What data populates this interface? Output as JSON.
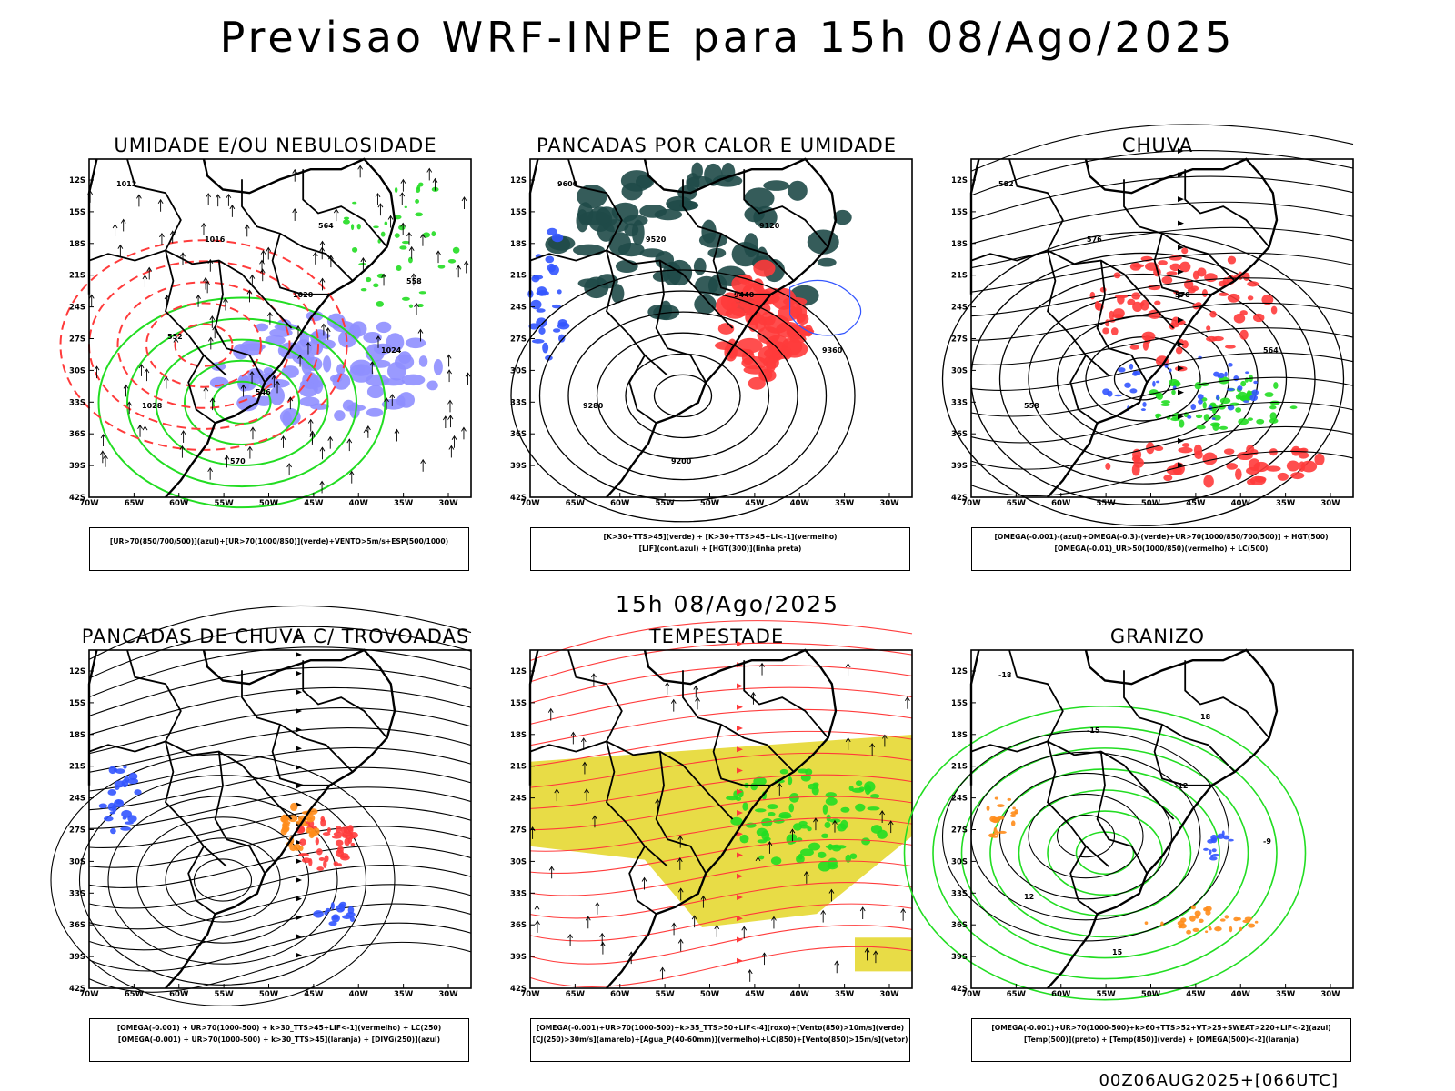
{
  "header": {
    "title": "Previsao WRF-INPE  para 15h 08/Ago/2025",
    "middle_title": "15h 08/Ago/2025",
    "run_stamp": "00Z06AUG2025+[066UTC]"
  },
  "axes": {
    "lat_labels": [
      "12S",
      "15S",
      "18S",
      "21S",
      "24S",
      "27S",
      "30S",
      "33S",
      "36S",
      "39S",
      "42S"
    ],
    "lon_labels": [
      "70W",
      "65W",
      "60W",
      "55W",
      "50W",
      "45W",
      "40W",
      "35W",
      "30W"
    ]
  },
  "colors": {
    "green": "#22dd22",
    "red": "#ff3b3b",
    "blue": "#3355ff",
    "orange": "#ff8c1a",
    "yellow": "#e6d832",
    "darkteal": "#1f4a48",
    "lavender": "#8f8fff"
  },
  "panels": [
    {
      "id": "umidade",
      "title": "UMIDADE E/OU NEBULOSIDADE",
      "legend": [
        "[UR>70(850/700/500)](azul)+[UR>70(1000/850)](verde)+VENTO>5m/s+ESP(500/1000)"
      ],
      "contour_labels": [
        "1012",
        "1016",
        "1020",
        "1024",
        "1028",
        "570",
        "564",
        "558",
        "552",
        "546"
      ]
    },
    {
      "id": "pancadas-calor",
      "title": "PANCADAS POR CALOR E UMIDADE",
      "legend": [
        "[K>30+TTS>45](verde) + [K>30+TTS>45+LI<-1](vermelho)",
        "[LIF](cont.azul) + [HGT(300)](linha preta)"
      ],
      "contour_labels": [
        "9600",
        "9520",
        "9440",
        "9360",
        "9280",
        "9200",
        "9120"
      ]
    },
    {
      "id": "chuva",
      "title": "CHUVA",
      "legend": [
        "[OMEGA(-0.001)-(azul)+OMEGA(-0.3)-(verde)+UR>70(1000/850/700/500)] + HGT(500)",
        "[OMEGA(-0.01)_UR>50(1000/850)(vermelho) + LC(500)"
      ],
      "contour_labels": [
        "582",
        "576",
        "570",
        "564",
        "558"
      ]
    },
    {
      "id": "trovoadas",
      "title": "PANCADAS DE CHUVA C/ TROVOADAS",
      "legend": [
        "[OMEGA(-0.001) + UR>70(1000-500) + k>30_TTS>45+LIF<-1](vermelho) + LC(250)",
        "[OMEGA(-0.001) + UR>70(1000-500) + k>30_TTS>45](laranja) + [DIVG(250)](azul)"
      ],
      "contour_labels": []
    },
    {
      "id": "tempestade",
      "title": "TEMPESTADE",
      "legend": [
        "[OMEGA(-0.001)+UR>70(1000-500)+k>35_TTS>50+LIF<-4](roxo)+[Vento(850)>10m/s](verde)",
        "[CJ(250)>30m/s](amarelo)+[Agua_P(40-60mm)](vermelho)+LC(850)+[Vento(850)>15m/s](vetor)"
      ],
      "contour_labels": []
    },
    {
      "id": "granizo",
      "title": "GRANIZO",
      "legend": [
        "[OMEGA(-0.001)+UR>70(1000-500)+k>60+TTS>52+VT>25+SWEAT>220+LIF<-2](azul)",
        "[Temp(500)](preto) + [Temp(850)](verde) + [OMEGA(500)<-2](laranja)"
      ],
      "contour_labels": [
        "-18",
        "-15",
        "-12",
        "-9",
        "12",
        "15",
        "18"
      ]
    }
  ]
}
